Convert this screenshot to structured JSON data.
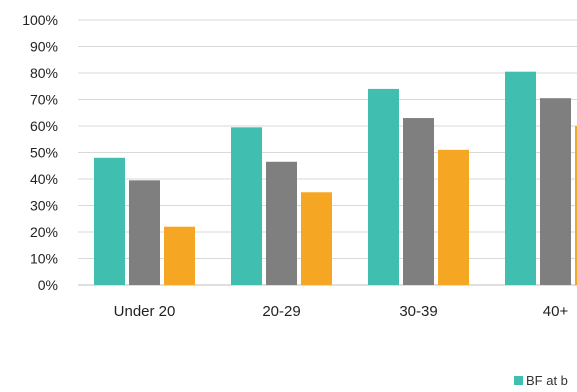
{
  "chart_data": {
    "type": "bar",
    "categories": [
      "Under 20",
      "20-29",
      "30-39",
      "40+"
    ],
    "series": [
      {
        "name": "BF at b",
        "color": "#40bfb0",
        "values": [
          48,
          59.5,
          74,
          80.5
        ]
      },
      {
        "color": "#7f7f7f",
        "values": [
          39.5,
          46.5,
          63,
          70.5
        ]
      },
      {
        "color": "#f5a623",
        "values": [
          22,
          35,
          51,
          60
        ]
      }
    ],
    "yticks": [
      "0%",
      "10%",
      "20%",
      "30%",
      "40%",
      "50%",
      "60%",
      "70%",
      "80%",
      "90%",
      "100%"
    ],
    "ylim": [
      0,
      100
    ],
    "grid": true,
    "legend_position": "bottom-right",
    "title": "",
    "xlabel": "",
    "ylabel": ""
  }
}
